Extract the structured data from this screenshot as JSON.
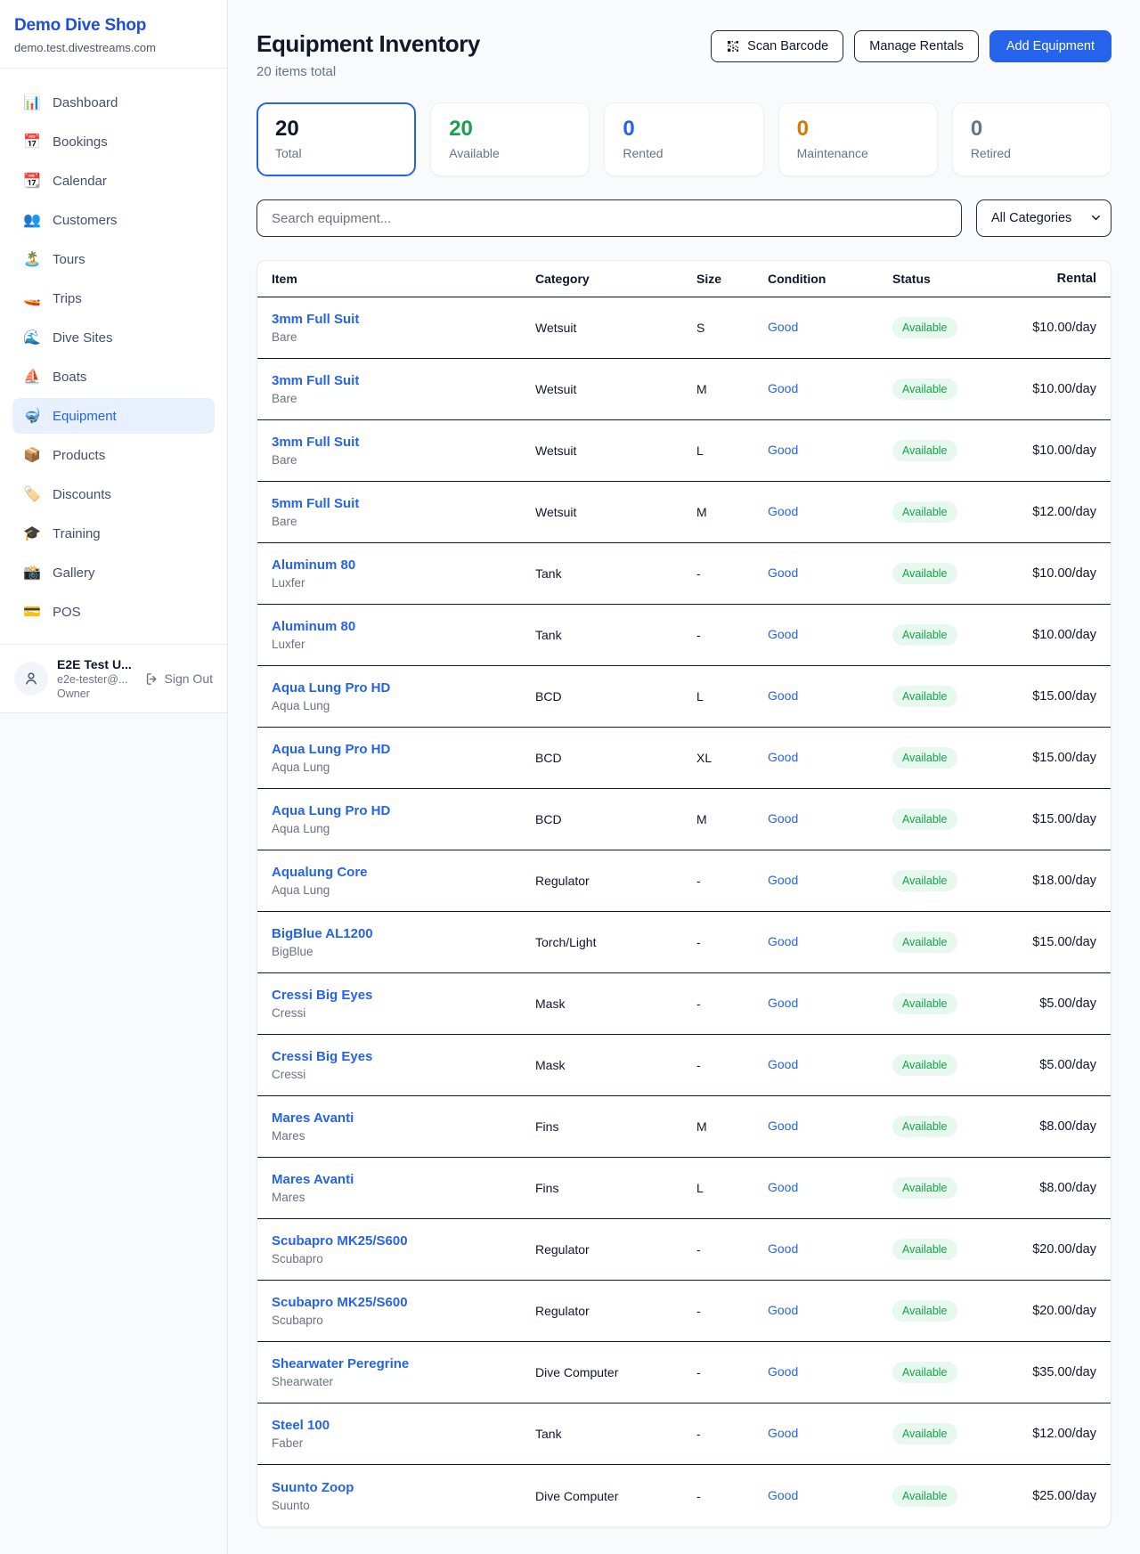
{
  "brand": {
    "name": "Demo Dive Shop",
    "domain": "demo.test.divestreams.com"
  },
  "sidebar": {
    "items": [
      {
        "label": "Dashboard",
        "icon": "bar-chart-icon",
        "glyph": "📊",
        "active": false
      },
      {
        "label": "Bookings",
        "icon": "calendar-date-icon",
        "glyph": "📅",
        "active": false
      },
      {
        "label": "Calendar",
        "icon": "tear-off-calendar-icon",
        "glyph": "📆",
        "active": false
      },
      {
        "label": "Customers",
        "icon": "people-icon",
        "glyph": "👥",
        "active": false
      },
      {
        "label": "Tours",
        "icon": "island-icon",
        "glyph": "🏝️",
        "active": false
      },
      {
        "label": "Trips",
        "icon": "speedboat-icon",
        "glyph": "🚤",
        "active": false
      },
      {
        "label": "Dive Sites",
        "icon": "wave-icon",
        "glyph": "🌊",
        "active": false
      },
      {
        "label": "Boats",
        "icon": "sailboat-icon",
        "glyph": "⛵",
        "active": false
      },
      {
        "label": "Equipment",
        "icon": "diving-mask-icon",
        "glyph": "🤿",
        "active": true
      },
      {
        "label": "Products",
        "icon": "package-icon",
        "glyph": "📦",
        "active": false
      },
      {
        "label": "Discounts",
        "icon": "label-tag-icon",
        "glyph": "🏷️",
        "active": false
      },
      {
        "label": "Training",
        "icon": "graduation-cap-icon",
        "glyph": "🎓",
        "active": false
      },
      {
        "label": "Gallery",
        "icon": "camera-flash-icon",
        "glyph": "📸",
        "active": false
      },
      {
        "label": "POS",
        "icon": "credit-card-icon",
        "glyph": "💳",
        "active": false
      }
    ]
  },
  "user": {
    "name": "E2E Test U...",
    "email": "e2e-tester@...",
    "role": "Owner",
    "sign_out_label": "Sign Out"
  },
  "header": {
    "title": "Equipment Inventory",
    "subtitle": "20 items total",
    "scan_button": "Scan Barcode",
    "manage_button": "Manage Rentals",
    "add_button": "Add Equipment"
  },
  "stats": [
    {
      "value": "20",
      "label": "Total",
      "color": "#0f172a",
      "active": true
    },
    {
      "value": "20",
      "label": "Available",
      "color": "#16a34a",
      "active": false
    },
    {
      "value": "0",
      "label": "Rented",
      "color": "#2563eb",
      "active": false
    },
    {
      "value": "0",
      "label": "Maintenance",
      "color": "#d97706",
      "active": false
    },
    {
      "value": "0",
      "label": "Retired",
      "color": "#64748b",
      "active": false
    }
  ],
  "filters": {
    "search_placeholder": "Search equipment...",
    "category_options": [
      "All Categories"
    ],
    "category_selected": "All Categories"
  },
  "table": {
    "columns": [
      "Item",
      "Category",
      "Size",
      "Condition",
      "Status",
      "Rental"
    ],
    "rows": [
      {
        "name": "3mm Full Suit",
        "brand": "Bare",
        "category": "Wetsuit",
        "size": "S",
        "condition": "Good",
        "status": "Available",
        "rental": "$10.00/day"
      },
      {
        "name": "3mm Full Suit",
        "brand": "Bare",
        "category": "Wetsuit",
        "size": "M",
        "condition": "Good",
        "status": "Available",
        "rental": "$10.00/day"
      },
      {
        "name": "3mm Full Suit",
        "brand": "Bare",
        "category": "Wetsuit",
        "size": "L",
        "condition": "Good",
        "status": "Available",
        "rental": "$10.00/day"
      },
      {
        "name": "5mm Full Suit",
        "brand": "Bare",
        "category": "Wetsuit",
        "size": "M",
        "condition": "Good",
        "status": "Available",
        "rental": "$12.00/day"
      },
      {
        "name": "Aluminum 80",
        "brand": "Luxfer",
        "category": "Tank",
        "size": "-",
        "condition": "Good",
        "status": "Available",
        "rental": "$10.00/day"
      },
      {
        "name": "Aluminum 80",
        "brand": "Luxfer",
        "category": "Tank",
        "size": "-",
        "condition": "Good",
        "status": "Available",
        "rental": "$10.00/day"
      },
      {
        "name": "Aqua Lung Pro HD",
        "brand": "Aqua Lung",
        "category": "BCD",
        "size": "L",
        "condition": "Good",
        "status": "Available",
        "rental": "$15.00/day"
      },
      {
        "name": "Aqua Lung Pro HD",
        "brand": "Aqua Lung",
        "category": "BCD",
        "size": "XL",
        "condition": "Good",
        "status": "Available",
        "rental": "$15.00/day"
      },
      {
        "name": "Aqua Lung Pro HD",
        "brand": "Aqua Lung",
        "category": "BCD",
        "size": "M",
        "condition": "Good",
        "status": "Available",
        "rental": "$15.00/day"
      },
      {
        "name": "Aqualung Core",
        "brand": "Aqua Lung",
        "category": "Regulator",
        "size": "-",
        "condition": "Good",
        "status": "Available",
        "rental": "$18.00/day"
      },
      {
        "name": "BigBlue AL1200",
        "brand": "BigBlue",
        "category": "Torch/Light",
        "size": "-",
        "condition": "Good",
        "status": "Available",
        "rental": "$15.00/day"
      },
      {
        "name": "Cressi Big Eyes",
        "brand": "Cressi",
        "category": "Mask",
        "size": "-",
        "condition": "Good",
        "status": "Available",
        "rental": "$5.00/day"
      },
      {
        "name": "Cressi Big Eyes",
        "brand": "Cressi",
        "category": "Mask",
        "size": "-",
        "condition": "Good",
        "status": "Available",
        "rental": "$5.00/day"
      },
      {
        "name": "Mares Avanti",
        "brand": "Mares",
        "category": "Fins",
        "size": "M",
        "condition": "Good",
        "status": "Available",
        "rental": "$8.00/day"
      },
      {
        "name": "Mares Avanti",
        "brand": "Mares",
        "category": "Fins",
        "size": "L",
        "condition": "Good",
        "status": "Available",
        "rental": "$8.00/day"
      },
      {
        "name": "Scubapro MK25/S600",
        "brand": "Scubapro",
        "category": "Regulator",
        "size": "-",
        "condition": "Good",
        "status": "Available",
        "rental": "$20.00/day"
      },
      {
        "name": "Scubapro MK25/S600",
        "brand": "Scubapro",
        "category": "Regulator",
        "size": "-",
        "condition": "Good",
        "status": "Available",
        "rental": "$20.00/day"
      },
      {
        "name": "Shearwater Peregrine",
        "brand": "Shearwater",
        "category": "Dive Computer",
        "size": "-",
        "condition": "Good",
        "status": "Available",
        "rental": "$35.00/day"
      },
      {
        "name": "Steel 100",
        "brand": "Faber",
        "category": "Tank",
        "size": "-",
        "condition": "Good",
        "status": "Available",
        "rental": "$12.00/day"
      },
      {
        "name": "Suunto Zoop",
        "brand": "Suunto",
        "category": "Dive Computer",
        "size": "-",
        "condition": "Good",
        "status": "Available",
        "rental": "$25.00/day"
      }
    ]
  },
  "colors": {
    "accent": "#2563eb",
    "brand_text": "#1d4ed8",
    "status_available_bg": "#e7f8ee",
    "status_available_text": "#16a34a",
    "page_bg": "#f8fafc"
  }
}
